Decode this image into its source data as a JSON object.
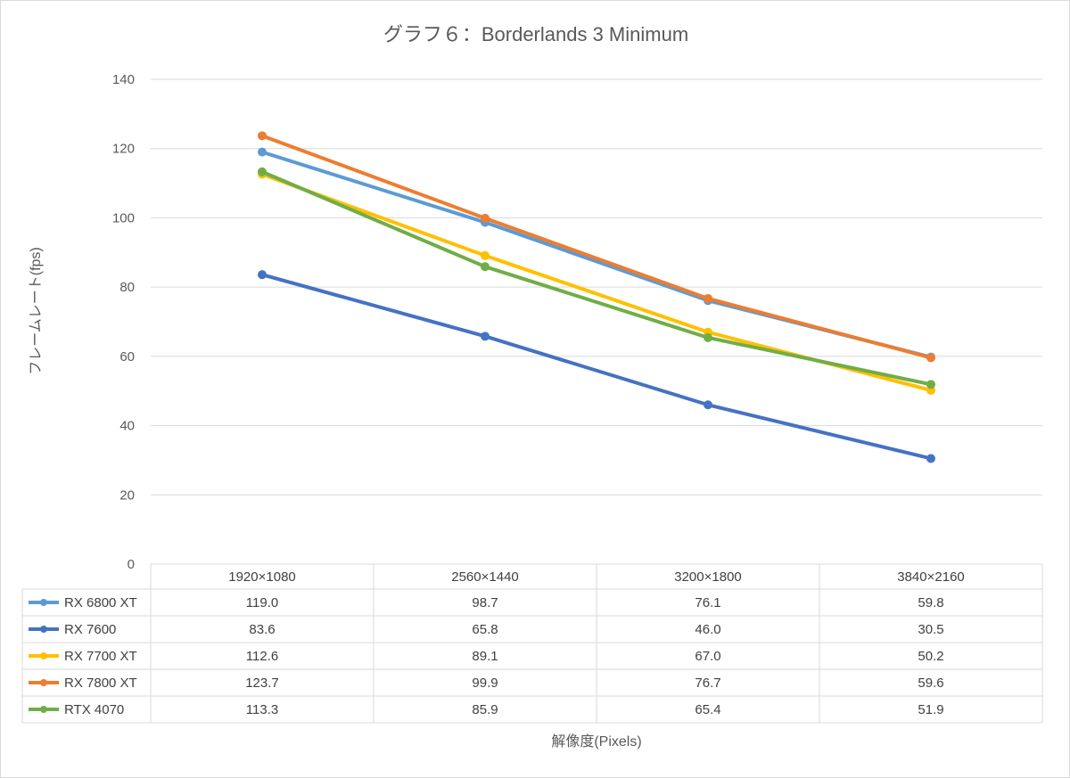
{
  "chart_data": {
    "type": "line",
    "title": "グラフ６：Borderlands 3 Minimum",
    "xlabel": "解像度(Pixels)",
    "ylabel": "フレームレート(fps)",
    "ylim": [
      0,
      140
    ],
    "yticks": [
      0,
      20,
      40,
      60,
      80,
      100,
      120,
      140
    ],
    "categories": [
      "1920×1080",
      "2560×1440",
      "3200×1800",
      "3840×2160"
    ],
    "grid": true,
    "legend": "data-table",
    "series": [
      {
        "name": "RX 6800 XT",
        "color": "#5b9bd5",
        "values": [
          119.0,
          98.7,
          76.1,
          59.8
        ],
        "labels": [
          "119.0",
          "98.7",
          "76.1",
          "59.8"
        ]
      },
      {
        "name": "RX 7600",
        "color": "#4472c4",
        "values": [
          83.6,
          65.8,
          46.0,
          30.5
        ],
        "labels": [
          "83.6",
          "65.8",
          "46.0",
          "30.5"
        ]
      },
      {
        "name": "RX 7700 XT",
        "color": "#ffc000",
        "values": [
          112.6,
          89.1,
          67.0,
          50.2
        ],
        "labels": [
          "112.6",
          "89.1",
          "67.0",
          "50.2"
        ]
      },
      {
        "name": "RX 7800 XT",
        "color": "#ed7d31",
        "values": [
          123.7,
          99.9,
          76.7,
          59.6
        ],
        "labels": [
          "123.7",
          "99.9",
          "76.7",
          "59.6"
        ]
      },
      {
        "name": "RTX 4070",
        "color": "#70ad47",
        "values": [
          113.3,
          85.9,
          65.4,
          51.9
        ],
        "labels": [
          "113.3",
          "85.9",
          "65.4",
          "51.9"
        ]
      }
    ]
  }
}
